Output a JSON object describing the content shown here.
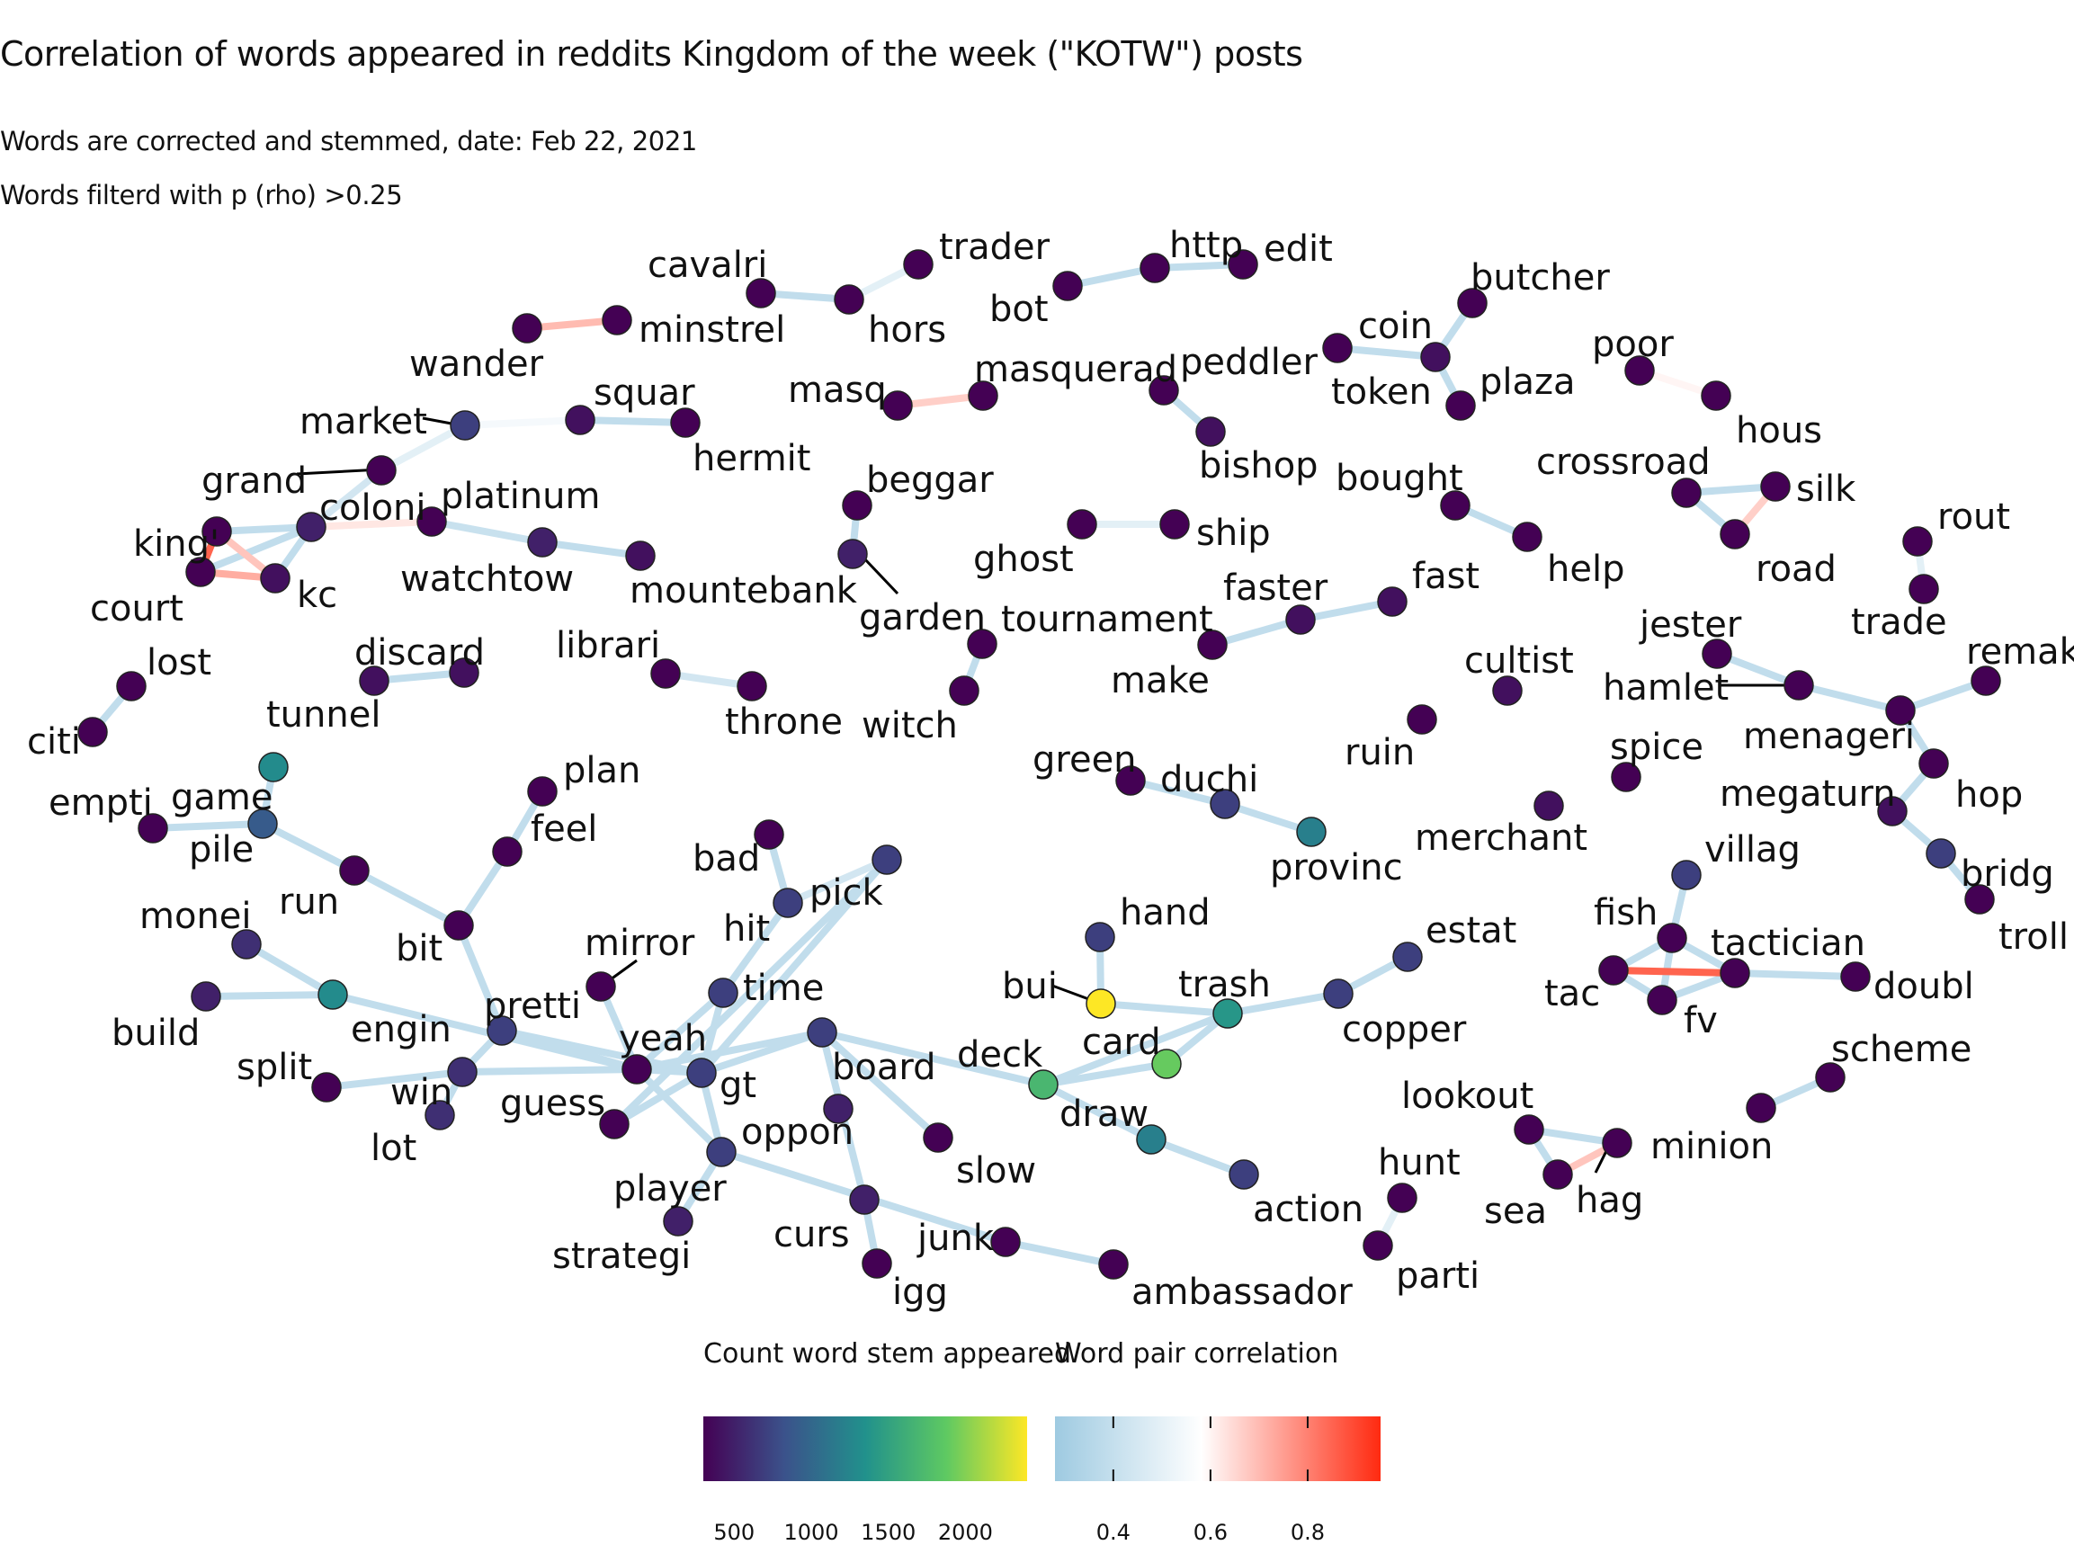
{
  "title": "Correlation of words appeared in reddits Kingdom of the week (\"KOTW\") posts",
  "subtitle_1": "Words are corrected and stemmed, date: Feb 22, 2021",
  "subtitle_2": "Words filterd with p (rho) >0.25",
  "colors": {
    "count_scale": [
      "#440154",
      "#3b528b",
      "#21918c",
      "#5ec962",
      "#fde725"
    ],
    "correlation_scale": [
      "#9ecae1",
      "#ffffff",
      "#ff4c32"
    ]
  },
  "nodes": [
    {
      "id": "cavalri",
      "count": 300
    },
    {
      "id": "hors",
      "count": 300
    },
    {
      "id": "trader",
      "count": 300
    },
    {
      "id": "bot",
      "count": 300
    },
    {
      "id": "http",
      "count": 300
    },
    {
      "id": "edit",
      "count": 300
    },
    {
      "id": "butcher",
      "count": 300
    },
    {
      "id": "coin",
      "count": 400
    },
    {
      "id": "token",
      "count": 300
    },
    {
      "id": "plaza",
      "count": 300
    },
    {
      "id": "poor",
      "count": 300
    },
    {
      "id": "hous",
      "count": 300
    },
    {
      "id": "wander",
      "count": 300
    },
    {
      "id": "minstrel",
      "count": 300
    },
    {
      "id": "masq",
      "count": 300
    },
    {
      "id": "masquerad",
      "count": 300
    },
    {
      "id": "peddler",
      "count": 300
    },
    {
      "id": "bishop",
      "count": 400
    },
    {
      "id": "market",
      "count": 700
    },
    {
      "id": "squar",
      "count": 400
    },
    {
      "id": "hermit",
      "count": 300
    },
    {
      "id": "grand",
      "count": 300
    },
    {
      "id": "coloni",
      "count": 500
    },
    {
      "id": "platinum",
      "count": 300
    },
    {
      "id": "king'",
      "count": 300
    },
    {
      "id": "court",
      "count": 300
    },
    {
      "id": "kc",
      "count": 400
    },
    {
      "id": "watchtow",
      "count": 500
    },
    {
      "id": "mountebank",
      "count": 400
    },
    {
      "id": "beggar",
      "count": 300
    },
    {
      "id": "garden",
      "count": 500
    },
    {
      "id": "ghost",
      "count": 300
    },
    {
      "id": "ship",
      "count": 300
    },
    {
      "id": "bought",
      "count": 300
    },
    {
      "id": "help",
      "count": 300
    },
    {
      "id": "crossroad",
      "count": 300
    },
    {
      "id": "silk",
      "count": 300
    },
    {
      "id": "road",
      "count": 300
    },
    {
      "id": "rout",
      "count": 300
    },
    {
      "id": "trade",
      "count": 300
    },
    {
      "id": "faster",
      "count": 400
    },
    {
      "id": "fast",
      "count": 400
    },
    {
      "id": "make",
      "count": 300
    },
    {
      "id": "tournament",
      "count": 300
    },
    {
      "id": "witch",
      "count": 300
    },
    {
      "id": "lost",
      "count": 300
    },
    {
      "id": "citi",
      "count": 300
    },
    {
      "id": "discard",
      "count": 400
    },
    {
      "id": "tunnel",
      "count": 400
    },
    {
      "id": "librari",
      "count": 300
    },
    {
      "id": "throne",
      "count": 300
    },
    {
      "id": "cultist",
      "count": 400
    },
    {
      "id": "ruin",
      "count": 300
    },
    {
      "id": "jester",
      "count": 300
    },
    {
      "id": "hamlet",
      "count": 300
    },
    {
      "id": "menageri",
      "count": 300
    },
    {
      "id": "remak",
      "count": 300
    },
    {
      "id": "hop",
      "count": 300
    },
    {
      "id": "megaturn",
      "count": 400
    },
    {
      "id": "bridg",
      "count": 700
    },
    {
      "id": "troll",
      "count": 300
    },
    {
      "id": "spice",
      "count": 300
    },
    {
      "id": "merchant",
      "count": 400
    },
    {
      "id": "green",
      "count": 300
    },
    {
      "id": "duchi",
      "count": 700
    },
    {
      "id": "provinc",
      "count": 1200
    },
    {
      "id": "empti",
      "count": 300
    },
    {
      "id": "game",
      "count": 1300
    },
    {
      "id": "pile",
      "count": 900
    },
    {
      "id": "plan",
      "count": 300
    },
    {
      "id": "feel",
      "count": 300
    },
    {
      "id": "run",
      "count": 300
    },
    {
      "id": "bit",
      "count": 300
    },
    {
      "id": "monei",
      "count": 600
    },
    {
      "id": "engin",
      "count": 1300
    },
    {
      "id": "build",
      "count": 500
    },
    {
      "id": "split",
      "count": 300
    },
    {
      "id": "win",
      "count": 600
    },
    {
      "id": "lot",
      "count": 600
    },
    {
      "id": "pretti",
      "count": 700
    },
    {
      "id": "guess",
      "count": 300
    },
    {
      "id": "yeah",
      "count": 300
    },
    {
      "id": "gt",
      "count": 700
    },
    {
      "id": "mirror",
      "count": 300
    },
    {
      "id": "bad",
      "count": 300
    },
    {
      "id": "pick",
      "count": 700
    },
    {
      "id": "hit",
      "count": 700
    },
    {
      "id": "time",
      "count": 700
    },
    {
      "id": "board",
      "count": 700
    },
    {
      "id": "oppon",
      "count": 700
    },
    {
      "id": "player",
      "count": 500
    },
    {
      "id": "strategi",
      "count": 500
    },
    {
      "id": "slow",
      "count": 300
    },
    {
      "id": "curs",
      "count": 500
    },
    {
      "id": "igg",
      "count": 300
    },
    {
      "id": "junk",
      "count": 300
    },
    {
      "id": "ambassador",
      "count": 300
    },
    {
      "id": "hand",
      "count": 700
    },
    {
      "id": "bui",
      "count": 2400
    },
    {
      "id": "trash",
      "count": 1400
    },
    {
      "id": "card",
      "count": 1900
    },
    {
      "id": "deck",
      "count": 1700
    },
    {
      "id": "draw",
      "count": 1200
    },
    {
      "id": "action",
      "count": 700
    },
    {
      "id": "copper",
      "count": 700
    },
    {
      "id": "estat",
      "count": 700
    },
    {
      "id": "village",
      "count": 700
    },
    {
      "id": "fish",
      "count": 300
    },
    {
      "id": "tactician",
      "count": 300
    },
    {
      "id": "tac",
      "count": 300
    },
    {
      "id": "fv",
      "count": 300
    },
    {
      "id": "doubl",
      "count": 300
    },
    {
      "id": "scheme",
      "count": 300
    },
    {
      "id": "lookout",
      "count": 300
    },
    {
      "id": "minion",
      "count": 300
    },
    {
      "id": "sea",
      "count": 300
    },
    {
      "id": "hag",
      "count": 300
    },
    {
      "id": "hunt",
      "count": 300
    },
    {
      "id": "parti",
      "count": 300
    }
  ],
  "node_labels": {
    "cavalri": "cavalri",
    "hors": "hors",
    "trader": "trader",
    "bot": "bot",
    "http": "http",
    "edit": "edit",
    "butcher": "butcher",
    "coin": "coin",
    "token": "token",
    "plaza": "plaza",
    "poor": "poor",
    "hous": "hous",
    "wander": "wander",
    "minstrel": "minstrel",
    "masq": "masq",
    "masquerad": "masquerad",
    "peddler": "peddler",
    "bishop": "bishop",
    "market": "market",
    "squar": "squar",
    "hermit": "hermit",
    "grand": "grand",
    "coloni": "coloni",
    "platinum": "platinum",
    "king'": "king'",
    "court": "court",
    "kc": "kc",
    "watchtow": "watchtow",
    "mountebank": "mountebank",
    "beggar": "beggar",
    "garden": "garden",
    "ghost": "ghost",
    "ship": "ship",
    "bought": "bought",
    "help": "help",
    "crossroad": "crossroad",
    "silk": "silk",
    "road": "road",
    "rout": "rout",
    "trade": "trade",
    "faster": "faster",
    "fast": "fast",
    "make": "make",
    "tournament": "tournament",
    "witch": "witch",
    "lost": "lost",
    "citi": "citi",
    "discard": "discard",
    "tunnel": "tunnel",
    "librari": "librari",
    "throne": "throne",
    "cultist": "cultist",
    "ruin": "ruin",
    "jester": "jester",
    "hamlet": "hamlet",
    "menageri": "menageri",
    "remak": "remak",
    "hop": "hop",
    "megaturn": "megaturn",
    "bridg": "bridg",
    "troll": "troll",
    "spice": "spice",
    "merchant": "merchant",
    "green": "green",
    "duchi": "duchi",
    "provinc": "provinc",
    "empti": "empti",
    "game": "game",
    "pile": "pile",
    "plan": "plan",
    "feel": "feel",
    "run": "run",
    "bit": "bit",
    "monei": "monei",
    "engin": "engin",
    "build": "build",
    "split": "split",
    "win": "win",
    "lot": "lot",
    "pretti": "pretti",
    "guess": "guess",
    "yeah": "yeah",
    "gt": "gt",
    "mirror": "mirror",
    "bad": "bad",
    "pick": "pick",
    "hit": "hit",
    "time": "time",
    "board": "board",
    "oppon": "oppon",
    "player": "player",
    "strategi": "strategi",
    "slow": "slow",
    "curs": "curs",
    "igg": "igg",
    "junk": "junk",
    "ambassador": "ambassador",
    "hand": "hand",
    "bui": "bui",
    "trash": "trash",
    "card": "card",
    "deck": "deck",
    "draw": "draw",
    "action": "action",
    "copper": "copper",
    "estat": "estat",
    "village": "villag",
    "fish": "fish",
    "tactician": "tactician",
    "tac": "tac",
    "fv": "fv",
    "doubl": "doubl",
    "scheme": "scheme",
    "lookout": "lookout",
    "minion": "minion",
    "sea": "sea",
    "hag": "hag",
    "hunt": "hunt",
    "parti": "parti"
  },
  "edges": [
    [
      "cavalri",
      "hors",
      0.4
    ],
    [
      "hors",
      "trader",
      0.5
    ],
    [
      "bot",
      "http",
      0.4
    ],
    [
      "http",
      "edit",
      0.4
    ],
    [
      "coin",
      "butcher",
      0.4
    ],
    [
      "coin",
      "token",
      0.4
    ],
    [
      "coin",
      "plaza",
      0.4
    ],
    [
      "poor",
      "hous",
      0.6
    ],
    [
      "wander",
      "minstrel",
      0.72
    ],
    [
      "masq",
      "masquerad",
      0.68
    ],
    [
      "peddler",
      "bishop",
      0.4
    ],
    [
      "market",
      "squar",
      0.55
    ],
    [
      "squar",
      "hermit",
      0.4
    ],
    [
      "market",
      "grand",
      0.5
    ],
    [
      "grand",
      "coloni",
      0.45
    ],
    [
      "coloni",
      "platinum",
      0.63
    ],
    [
      "platinum",
      "watchtow",
      0.42
    ],
    [
      "watchtow",
      "mountebank",
      0.4
    ],
    [
      "king'",
      "coloni",
      0.4
    ],
    [
      "court",
      "coloni",
      0.4
    ],
    [
      "kc",
      "coloni",
      0.4
    ],
    [
      "king'",
      "court",
      0.9
    ],
    [
      "court",
      "kc",
      0.75
    ],
    [
      "king'",
      "kc",
      0.7
    ],
    [
      "beggar",
      "garden",
      0.4
    ],
    [
      "ghost",
      "ship",
      0.5
    ],
    [
      "bought",
      "help",
      0.4
    ],
    [
      "crossroad",
      "silk",
      0.4
    ],
    [
      "crossroad",
      "road",
      0.4
    ],
    [
      "silk",
      "road",
      0.68
    ],
    [
      "rout",
      "trade",
      0.5
    ],
    [
      "faster",
      "fast",
      0.4
    ],
    [
      "faster",
      "make",
      0.4
    ],
    [
      "tournament",
      "witch",
      0.4
    ],
    [
      "lost",
      "citi",
      0.4
    ],
    [
      "discard",
      "tunnel",
      0.4
    ],
    [
      "librari",
      "throne",
      0.45
    ],
    [
      "jester",
      "hamlet",
      0.4
    ],
    [
      "hamlet",
      "menageri",
      0.4
    ],
    [
      "menageri",
      "remak",
      0.4
    ],
    [
      "menageri",
      "hop",
      0.4
    ],
    [
      "hop",
      "megaturn",
      0.4
    ],
    [
      "megaturn",
      "bridg",
      0.4
    ],
    [
      "bridg",
      "troll",
      0.4
    ],
    [
      "green",
      "duchi",
      0.4
    ],
    [
      "duchi",
      "provinc",
      0.4
    ],
    [
      "empti",
      "pile",
      0.4
    ],
    [
      "game",
      "pile",
      0.4
    ],
    [
      "pile",
      "run",
      0.4
    ],
    [
      "run",
      "bit",
      0.4
    ],
    [
      "bit",
      "feel",
      0.4
    ],
    [
      "feel",
      "plan",
      0.4
    ],
    [
      "bit",
      "pretti",
      0.4
    ],
    [
      "monei",
      "engin",
      0.4
    ],
    [
      "build",
      "engin",
      0.4
    ],
    [
      "engin",
      "yeah",
      0.4
    ],
    [
      "split",
      "win",
      0.4
    ],
    [
      "win",
      "lot",
      0.4
    ],
    [
      "win",
      "pretti",
      0.4
    ],
    [
      "win",
      "yeah",
      0.4
    ],
    [
      "pretti",
      "yeah",
      0.4
    ],
    [
      "pretti",
      "gt",
      0.4
    ],
    [
      "mirror",
      "yeah",
      0.4
    ],
    [
      "yeah",
      "gt",
      0.4
    ],
    [
      "yeah",
      "hit",
      0.4
    ],
    [
      "yeah",
      "board",
      0.4
    ],
    [
      "yeah",
      "oppon",
      0.4
    ],
    [
      "guess",
      "gt",
      0.4
    ],
    [
      "guess",
      "time",
      0.4
    ],
    [
      "gt",
      "time",
      0.4
    ],
    [
      "gt",
      "hit",
      0.4
    ],
    [
      "gt",
      "oppon",
      0.4
    ],
    [
      "hit",
      "pick",
      0.4
    ],
    [
      "pick",
      "bad",
      0.4
    ],
    [
      "pick",
      "time",
      0.45
    ],
    [
      "gt",
      "board",
      0.4
    ],
    [
      "board",
      "slow",
      0.4
    ],
    [
      "board",
      "curs",
      0.4
    ],
    [
      "board",
      "deck",
      0.4
    ],
    [
      "oppon",
      "player",
      0.4
    ],
    [
      "oppon",
      "junk",
      0.4
    ],
    [
      "curs",
      "igg",
      0.4
    ],
    [
      "junk",
      "ambassador",
      0.4
    ],
    [
      "deck",
      "card",
      0.4
    ],
    [
      "deck",
      "trash",
      0.4
    ],
    [
      "deck",
      "draw",
      0.4
    ],
    [
      "hand",
      "bui",
      0.4
    ],
    [
      "bui",
      "trash",
      0.4
    ],
    [
      "card",
      "trash",
      0.4
    ],
    [
      "trash",
      "copper",
      0.4
    ],
    [
      "copper",
      "estat",
      0.4
    ],
    [
      "draw",
      "action",
      0.4
    ],
    [
      "village",
      "fish",
      0.4
    ],
    [
      "fish",
      "tac",
      0.4
    ],
    [
      "fish",
      "fv",
      0.4
    ],
    [
      "fish",
      "tactician",
      0.4
    ],
    [
      "tac",
      "fv",
      0.4
    ],
    [
      "fv",
      "tactician",
      0.4
    ],
    [
      "tac",
      "tactician",
      0.9
    ],
    [
      "tactician",
      "doubl",
      0.4
    ],
    [
      "scheme",
      "minion",
      0.4
    ],
    [
      "lookout",
      "sea",
      0.4
    ],
    [
      "lookout",
      "hag",
      0.4
    ],
    [
      "sea",
      "hag",
      0.7
    ],
    [
      "hunt",
      "parti",
      0.5
    ]
  ],
  "legend": {
    "count_title": "Count word stem appeared",
    "corr_title": "Word pair correlation",
    "count_ticks": [
      "500",
      "1000",
      "1500",
      "2000"
    ],
    "corr_ticks": [
      "0.4",
      "0.6",
      "0.8"
    ]
  }
}
